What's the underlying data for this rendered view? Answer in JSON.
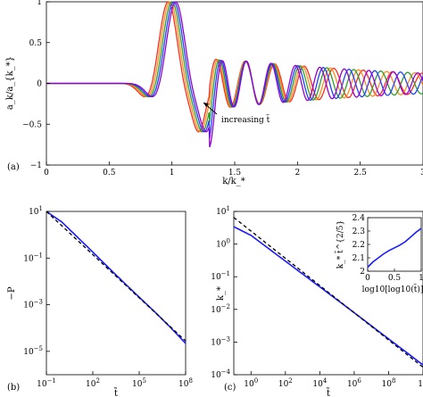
{
  "chart_data": [
    {
      "panel_label": "(a)",
      "type": "line",
      "xlabel": "k/k_*",
      "ylabel": "a_k/a_{k_*}",
      "xlim": [
        0,
        3
      ],
      "ylim": [
        -1,
        1
      ],
      "xticks": [
        "0",
        "0.5",
        "1",
        "1.5",
        "2",
        "2.5",
        "3"
      ],
      "yticks": [
        "−1",
        "−0.5",
        "0",
        "0.5",
        "1"
      ],
      "annotation": "increasing t̃",
      "grid": false,
      "series": [
        {
          "color": "#ff2a1a",
          "peak_x": 0.97,
          "osc_period": 0.235
        },
        {
          "color": "#ff8c1a",
          "peak_x": 0.985,
          "osc_period": 0.225
        },
        {
          "color": "#2ca02c",
          "peak_x": 1.0,
          "osc_period": 0.215
        },
        {
          "color": "#1f3fff",
          "peak_x": 1.015,
          "osc_period": 0.205
        },
        {
          "color": "#9400d3",
          "peak_x": 1.03,
          "osc_period": 0.195
        }
      ]
    },
    {
      "panel_label": "(b)",
      "type": "line",
      "xlabel": "t̃",
      "ylabel": "−P",
      "xscale": "log",
      "yscale": "log",
      "xlim": [
        0.1,
        100000000
      ],
      "ylim": [
        1e-06,
        10
      ],
      "xticks": [
        "10−1",
        "102",
        "105",
        "108"
      ],
      "yticks": [
        "101",
        "10−1",
        "10−3",
        "10−5"
      ],
      "series": [
        {
          "style": "solid",
          "color": "#1a1aff",
          "x": [
            0.1,
            1,
            10,
            100,
            1000,
            10000,
            100000,
            1000000,
            10000000,
            100000000
          ],
          "y": [
            10,
            3.5,
            0.8,
            0.18,
            0.04,
            0.009,
            0.0021,
            0.0005,
            0.00011,
            2.2e-05
          ]
        },
        {
          "style": "dashed",
          "color": "#000000",
          "x": [
            0.1,
            100000000
          ],
          "y": [
            10,
            2.8e-05
          ]
        }
      ]
    },
    {
      "panel_label": "(c)",
      "type": "line",
      "xlabel": "t̃",
      "ylabel": "k_*",
      "xscale": "log",
      "yscale": "log",
      "xlim": [
        0.1,
        10000000000
      ],
      "ylim": [
        0.0001,
        10
      ],
      "xticks": [
        "100",
        "102",
        "104",
        "106",
        "108",
        "10"
      ],
      "yticks": [
        "101",
        "100",
        "10−1",
        "10−2",
        "10−3",
        "10−4"
      ],
      "series": [
        {
          "style": "solid",
          "color": "#1a1aff",
          "x": [
            0.1,
            1,
            100,
            10000,
            1000000,
            100000000,
            10000000000
          ],
          "y": [
            3.4,
            1.85,
            0.3,
            0.049,
            0.0079,
            0.00125,
            0.0002
          ]
        },
        {
          "style": "dashed",
          "color": "#000000",
          "x": [
            0.1,
            10000000000
          ],
          "y": [
            6.5,
            0.00017
          ]
        }
      ],
      "inset": {
        "xlabel": "log10[log10(t̃)]",
        "ylabel": "k_* t̃^{2/5}",
        "xlim": [
          0,
          1
        ],
        "ylim": [
          2.0,
          2.4
        ],
        "xticks": [
          "0",
          "0.5",
          "1"
        ],
        "yticks": [
          "2",
          "2.1",
          "2.2",
          "2.3",
          "2.4"
        ],
        "x": [
          0,
          0.1,
          0.2,
          0.3,
          0.4,
          0.5,
          0.6,
          0.7,
          0.8,
          0.9,
          1.0
        ],
        "y": [
          2.03,
          2.07,
          2.1,
          2.13,
          2.155,
          2.175,
          2.195,
          2.22,
          2.255,
          2.29,
          2.32
        ]
      }
    }
  ]
}
